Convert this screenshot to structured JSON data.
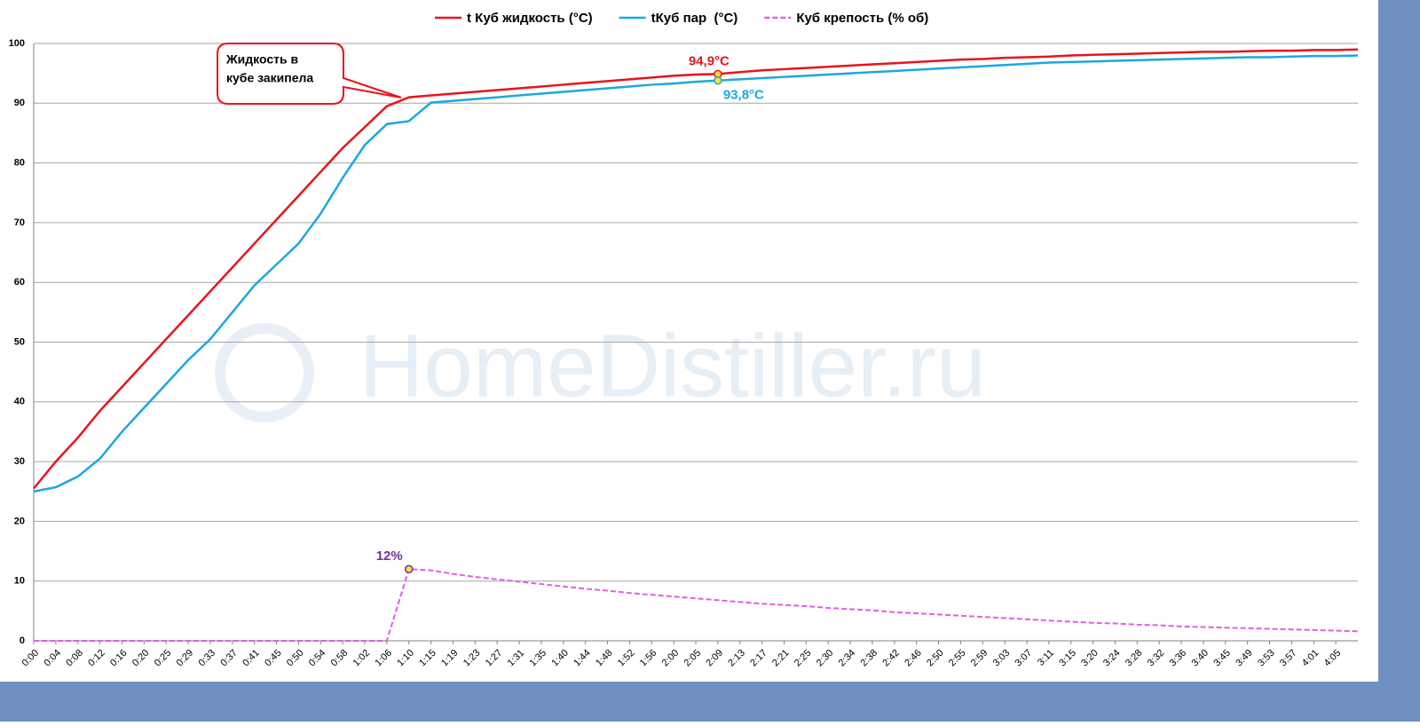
{
  "chart_data": {
    "type": "line",
    "watermark": "HomeDistiller.ru",
    "annotations": [
      {
        "text": [
          "Жидкость в",
          "кубе закипела"
        ],
        "color": "#e8141b"
      }
    ],
    "categories": [
      "0:00",
      "0:04",
      "0:08",
      "0:12",
      "0:16",
      "0:20",
      "0:25",
      "0:29",
      "0:33",
      "0:37",
      "0:41",
      "0:45",
      "0:50",
      "0:54",
      "0:58",
      "1:02",
      "1:06",
      "1:10",
      "1:15",
      "1:19",
      "1:23",
      "1:27",
      "1:31",
      "1:35",
      "1:40",
      "1:44",
      "1:48",
      "1:52",
      "1:56",
      "2:00",
      "2:05",
      "2:09",
      "2:13",
      "2:17",
      "2:21",
      "2:25",
      "2:30",
      "2:34",
      "2:38",
      "2:42",
      "2:46",
      "2:50",
      "2:55",
      "2:59",
      "3:03",
      "3:07",
      "3:11",
      "3:15",
      "3:20",
      "3:24",
      "3:28",
      "3:32",
      "3:36",
      "3:40",
      "3:45",
      "3:49",
      "3:53",
      "3:57",
      "4:01",
      "4:05",
      null
    ],
    "series": [
      {
        "name": "t Куб жидкость (°C)",
        "color": "#e8141b",
        "dashed": false,
        "values": [
          25.5,
          30,
          34,
          38.5,
          42.5,
          46.5,
          50.5,
          54.5,
          58.5,
          62.5,
          66.5,
          70.5,
          74.5,
          78.5,
          82.5,
          86,
          89.5,
          91,
          91.3,
          91.6,
          91.9,
          92.2,
          92.5,
          92.8,
          93.1,
          93.4,
          93.7,
          94.0,
          94.3,
          94.6,
          94.8,
          94.9,
          95.2,
          95.5,
          95.7,
          95.9,
          96.1,
          96.3,
          96.5,
          96.7,
          96.9,
          97.1,
          97.3,
          97.4,
          97.6,
          97.7,
          97.8,
          98.0,
          98.1,
          98.2,
          98.3,
          98.4,
          98.5,
          98.6,
          98.6,
          98.7,
          98.8,
          98.8,
          98.9,
          98.9,
          99
        ],
        "value_labels": [
          null,
          null,
          null,
          null,
          null,
          null,
          null,
          null,
          null,
          null,
          null,
          null,
          null,
          null,
          null,
          null,
          null,
          null,
          null,
          null,
          null,
          null,
          null,
          null,
          null,
          null,
          null,
          null,
          null,
          null,
          null,
          "94,9°C",
          null,
          null,
          null,
          null,
          null,
          null,
          null,
          null,
          null,
          null,
          null,
          null,
          null,
          null,
          null,
          null,
          null,
          null,
          null,
          null,
          null,
          null,
          null,
          null,
          null,
          null,
          null,
          null,
          null
        ],
        "label_color": "#e8141b"
      },
      {
        "name": "tКуб пар  (°C)",
        "color": "#1ba8e0",
        "dashed": false,
        "values": [
          25,
          25.7,
          27.5,
          30.5,
          35,
          39,
          43,
          47,
          50.5,
          55,
          59.5,
          63,
          66.5,
          71.5,
          77.5,
          83,
          86.5,
          87,
          90.1,
          90.4,
          90.7,
          91.0,
          91.3,
          91.6,
          91.9,
          92.2,
          92.5,
          92.8,
          93.1,
          93.3,
          93.6,
          93.8,
          94.0,
          94.2,
          94.4,
          94.6,
          94.8,
          95.0,
          95.2,
          95.4,
          95.6,
          95.8,
          96.0,
          96.2,
          96.4,
          96.6,
          96.8,
          96.9,
          97.0,
          97.1,
          97.2,
          97.3,
          97.4,
          97.5,
          97.6,
          97.7,
          97.7,
          97.8,
          97.9,
          97.9,
          98.0
        ],
        "value_labels": [
          null,
          null,
          null,
          null,
          null,
          null,
          null,
          null,
          null,
          null,
          null,
          null,
          null,
          null,
          null,
          null,
          null,
          null,
          null,
          null,
          null,
          null,
          null,
          null,
          null,
          null,
          null,
          null,
          null,
          null,
          null,
          "93,8°C",
          null,
          null,
          null,
          null,
          null,
          null,
          null,
          null,
          null,
          null,
          null,
          null,
          null,
          null,
          null,
          null,
          null,
          null,
          null,
          null,
          null,
          null,
          null,
          null,
          null,
          null,
          null,
          null,
          null
        ],
        "label_color": "#1ba8e0"
      },
      {
        "name": "Куб крепость (% об)",
        "color": "#e060e0",
        "dashed": true,
        "values": [
          0,
          0,
          0,
          0,
          0,
          0,
          0,
          0,
          0,
          0,
          0,
          0,
          0,
          0,
          0,
          0,
          0,
          12,
          11.8,
          11.2,
          10.7,
          10.3,
          9.9,
          9.5,
          9.1,
          8.7,
          8.4,
          8.0,
          7.7,
          7.4,
          7.1,
          6.8,
          6.5,
          6.2,
          6.0,
          5.8,
          5.5,
          5.3,
          5.1,
          4.8,
          4.6,
          4.4,
          4.2,
          4.0,
          3.8,
          3.6,
          3.4,
          3.2,
          3.0,
          2.9,
          2.7,
          2.6,
          2.4,
          2.3,
          2.2,
          2.1,
          2.0,
          1.9,
          1.8,
          1.7,
          1.6
        ],
        "value_labels": [
          null,
          null,
          null,
          null,
          null,
          null,
          null,
          null,
          null,
          null,
          null,
          null,
          null,
          null,
          null,
          null,
          null,
          "12%",
          null,
          null,
          null,
          null,
          null,
          null,
          null,
          null,
          null,
          null,
          null,
          null,
          null,
          null,
          null,
          null,
          null,
          null,
          null,
          null,
          null,
          null,
          null,
          null,
          null,
          null,
          null,
          null,
          null,
          null,
          null,
          null,
          null,
          null,
          null,
          null,
          null,
          null,
          null,
          null,
          null,
          null,
          null
        ],
        "label_color": "#7030a0"
      }
    ],
    "ylim": [
      0,
      100
    ],
    "yticks": [
      0,
      10,
      20,
      30,
      40,
      50,
      60,
      70,
      80,
      90,
      100
    ],
    "grid": true,
    "legend": "top"
  }
}
